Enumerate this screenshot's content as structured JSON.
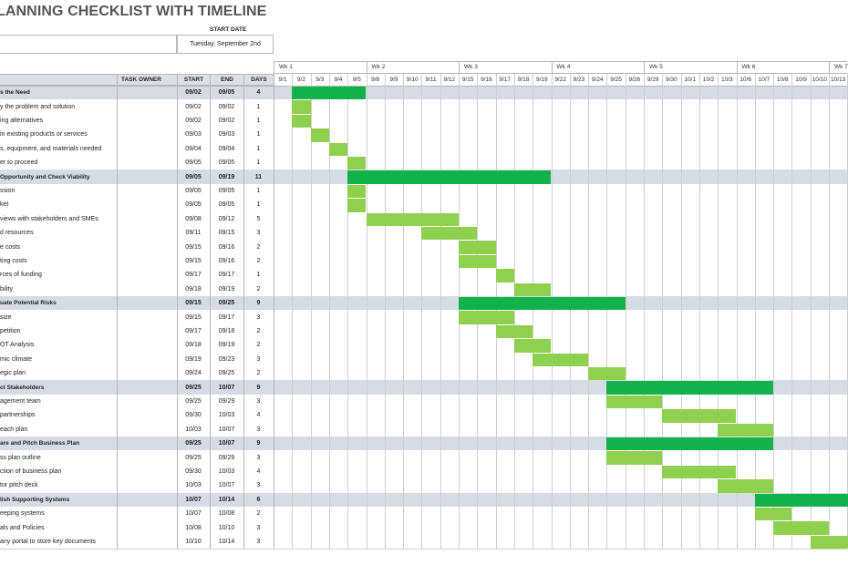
{
  "title": "LANNING CHECKLIST WITH TIMELINE",
  "start_date_label": "START DATE",
  "start_date_value": "Tuesday, September 2nd",
  "columns": {
    "task_owner": "TASK OWNER",
    "start": "START",
    "end": "END",
    "days": "DAYS"
  },
  "weeks": [
    "Wk 1",
    "Wk 2",
    "Wk 3",
    "Wk 4",
    "Wk 5",
    "Wk 6",
    "Wk 7"
  ],
  "days": [
    "9/1",
    "9/2",
    "9/3",
    "9/4",
    "9/5",
    "9/8",
    "9/9",
    "9/10",
    "9/11",
    "9/12",
    "9/15",
    "9/16",
    "9/17",
    "9/18",
    "9/19",
    "9/22",
    "9/23",
    "9/24",
    "9/25",
    "9/26",
    "9/29",
    "9/30",
    "10/1",
    "10/2",
    "10/3",
    "10/6",
    "10/7",
    "10/8",
    "10/9",
    "10/10",
    "10/13"
  ],
  "colors": {
    "header_fill": "#dbe0e6",
    "phase_fill": "#d6dce4",
    "phase_bar": "#11b14c",
    "task_bar": "#8fd14f",
    "border": "#b7b7b7",
    "grid": "#cfcfcf"
  },
  "rows": [
    {
      "type": "phase",
      "task": "s the Need",
      "owner": "",
      "start": "09/02",
      "end": "09/05",
      "days": "4",
      "bar_start": 1,
      "bar_len": 4
    },
    {
      "type": "task",
      "task": "y the problem and solution",
      "owner": "",
      "start": "09/02",
      "end": "09/02",
      "days": "1",
      "bar_start": 1,
      "bar_len": 1
    },
    {
      "type": "task",
      "task": "ing alternatives",
      "owner": "",
      "start": "09/02",
      "end": "09/02",
      "days": "1",
      "bar_start": 1,
      "bar_len": 1
    },
    {
      "type": "task",
      "task": "in existing products or services",
      "owner": "",
      "start": "09/03",
      "end": "09/03",
      "days": "1",
      "bar_start": 2,
      "bar_len": 1
    },
    {
      "type": "task",
      "task": "s, equipment, and materials needed",
      "owner": "",
      "start": "09/04",
      "end": "09/04",
      "days": "1",
      "bar_start": 3,
      "bar_len": 1
    },
    {
      "type": "task",
      "task": "er to proceed",
      "owner": "",
      "start": "09/05",
      "end": "09/05",
      "days": "1",
      "bar_start": 4,
      "bar_len": 1
    },
    {
      "type": "phase",
      "task": "Opportunity and Check Viability",
      "owner": "",
      "start": "09/05",
      "end": "09/19",
      "days": "11",
      "bar_start": 4,
      "bar_len": 11
    },
    {
      "type": "task",
      "task": "ssion",
      "owner": "",
      "start": "09/05",
      "end": "09/05",
      "days": "1",
      "bar_start": 4,
      "bar_len": 1
    },
    {
      "type": "task",
      "task": "ket",
      "owner": "",
      "start": "09/05",
      "end": "09/05",
      "days": "1",
      "bar_start": 4,
      "bar_len": 1
    },
    {
      "type": "task",
      "task": "views with stakeholders and SMEs",
      "owner": "",
      "start": "09/08",
      "end": "09/12",
      "days": "5",
      "bar_start": 5,
      "bar_len": 5
    },
    {
      "type": "task",
      "task": "d resources",
      "owner": "",
      "start": "09/11",
      "end": "09/15",
      "days": "3",
      "bar_start": 8,
      "bar_len": 3
    },
    {
      "type": "task",
      "task": "e costs",
      "owner": "",
      "start": "09/15",
      "end": "09/16",
      "days": "2",
      "bar_start": 10,
      "bar_len": 2
    },
    {
      "type": "task",
      "task": "ting costs",
      "owner": "",
      "start": "09/15",
      "end": "09/16",
      "days": "2",
      "bar_start": 10,
      "bar_len": 2
    },
    {
      "type": "task",
      "task": "rces of funding",
      "owner": "",
      "start": "09/17",
      "end": "09/17",
      "days": "1",
      "bar_start": 12,
      "bar_len": 1
    },
    {
      "type": "task",
      "task": "bility",
      "owner": "",
      "start": "09/18",
      "end": "09/19",
      "days": "2",
      "bar_start": 13,
      "bar_len": 2
    },
    {
      "type": "phase",
      "task": "uate Potential Risks",
      "owner": "",
      "start": "09/15",
      "end": "09/25",
      "days": "9",
      "bar_start": 10,
      "bar_len": 9
    },
    {
      "type": "task",
      "task": "size",
      "owner": "",
      "start": "09/15",
      "end": "09/17",
      "days": "3",
      "bar_start": 10,
      "bar_len": 3
    },
    {
      "type": "task",
      "task": "petition",
      "owner": "",
      "start": "09/17",
      "end": "09/18",
      "days": "2",
      "bar_start": 12,
      "bar_len": 2
    },
    {
      "type": "task",
      "task": "OT Analysis",
      "owner": "",
      "start": "09/18",
      "end": "09/19",
      "days": "2",
      "bar_start": 13,
      "bar_len": 2
    },
    {
      "type": "task",
      "task": "mic climate",
      "owner": "",
      "start": "09/19",
      "end": "09/23",
      "days": "3",
      "bar_start": 14,
      "bar_len": 3
    },
    {
      "type": "task",
      "task": "egic plan",
      "owner": "",
      "start": "09/24",
      "end": "09/25",
      "days": "2",
      "bar_start": 17,
      "bar_len": 2
    },
    {
      "type": "phase",
      "task": "ct Stakeholders",
      "owner": "",
      "start": "09/25",
      "end": "10/07",
      "days": "9",
      "bar_start": 18,
      "bar_len": 9
    },
    {
      "type": "task",
      "task": "agement team",
      "owner": "",
      "start": "09/25",
      "end": "09/29",
      "days": "3",
      "bar_start": 18,
      "bar_len": 3
    },
    {
      "type": "task",
      "task": "partnerships",
      "owner": "",
      "start": "09/30",
      "end": "10/03",
      "days": "4",
      "bar_start": 21,
      "bar_len": 4
    },
    {
      "type": "task",
      "task": "each plan",
      "owner": "",
      "start": "10/03",
      "end": "10/07",
      "days": "3",
      "bar_start": 24,
      "bar_len": 3
    },
    {
      "type": "phase",
      "task": "are and Pitch Business Plan",
      "owner": "",
      "start": "09/25",
      "end": "10/07",
      "days": "9",
      "bar_start": 18,
      "bar_len": 9
    },
    {
      "type": "task",
      "task": "ss plan outline",
      "owner": "",
      "start": "09/25",
      "end": "09/29",
      "days": "3",
      "bar_start": 18,
      "bar_len": 3
    },
    {
      "type": "task",
      "task": "ction of business plan",
      "owner": "",
      "start": "09/30",
      "end": "10/03",
      "days": "4",
      "bar_start": 21,
      "bar_len": 4
    },
    {
      "type": "task",
      "task": "tor pitch deck",
      "owner": "",
      "start": "10/03",
      "end": "10/07",
      "days": "3",
      "bar_start": 24,
      "bar_len": 3
    },
    {
      "type": "phase",
      "task": "lish Supporting Systems",
      "owner": "",
      "start": "10/07",
      "end": "10/14",
      "days": "6",
      "bar_start": 26,
      "bar_len": 6
    },
    {
      "type": "task",
      "task": "eeping systems",
      "owner": "",
      "start": "10/07",
      "end": "10/08",
      "days": "2",
      "bar_start": 26,
      "bar_len": 2
    },
    {
      "type": "task",
      "task": "als and Policies",
      "owner": "",
      "start": "10/08",
      "end": "10/10",
      "days": "3",
      "bar_start": 27,
      "bar_len": 3
    },
    {
      "type": "task",
      "task": "any portal to store key documents",
      "owner": "",
      "start": "10/10",
      "end": "10/14",
      "days": "3",
      "bar_start": 29,
      "bar_len": 3
    }
  ]
}
